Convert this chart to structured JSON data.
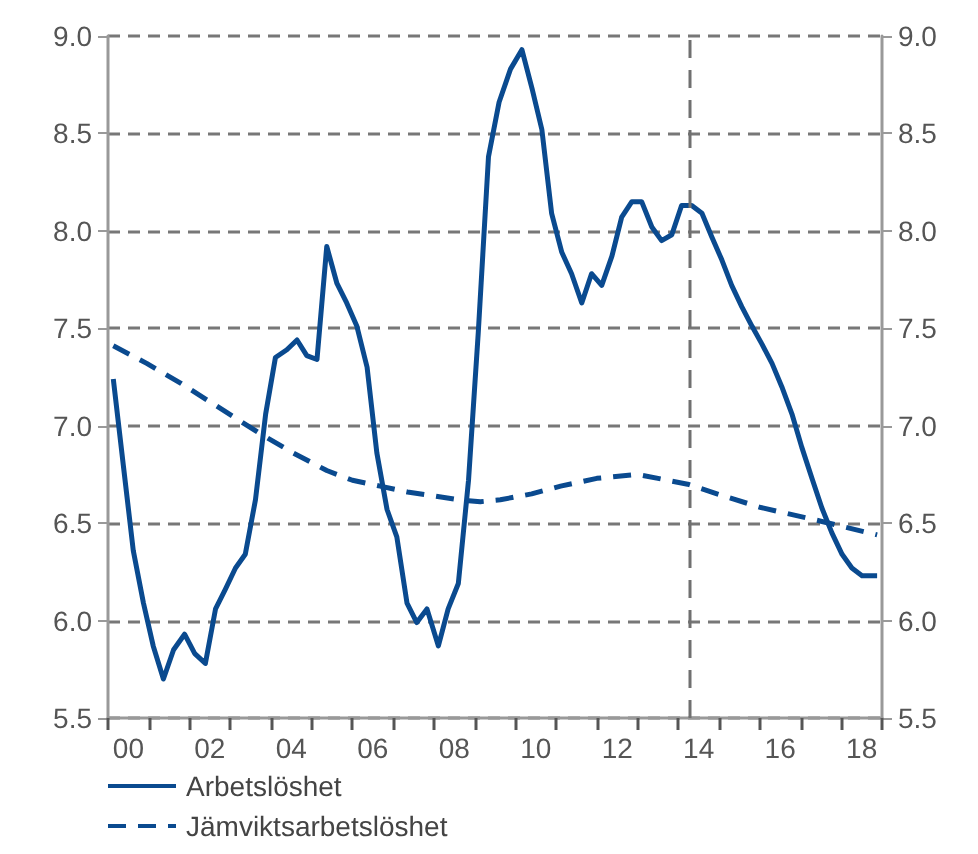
{
  "chart_data": {
    "type": "line",
    "xlim": [
      1999.5,
      2018.5
    ],
    "xticks": [
      {
        "value": 1999.5,
        "label": null
      },
      {
        "value": 2000,
        "label": "00"
      },
      {
        "value": 2000.5,
        "label": null
      },
      {
        "value": 2001.5,
        "label": null
      },
      {
        "value": 2002,
        "label": "02"
      },
      {
        "value": 2002.5,
        "label": null
      },
      {
        "value": 2003.5,
        "label": null
      },
      {
        "value": 2004,
        "label": "04"
      },
      {
        "value": 2004.5,
        "label": null
      },
      {
        "value": 2005.5,
        "label": null
      },
      {
        "value": 2006,
        "label": "06"
      },
      {
        "value": 2006.5,
        "label": null
      },
      {
        "value": 2007.5,
        "label": null
      },
      {
        "value": 2008,
        "label": "08"
      },
      {
        "value": 2008.5,
        "label": null
      },
      {
        "value": 2009.5,
        "label": null
      },
      {
        "value": 2010,
        "label": "10"
      },
      {
        "value": 2010.5,
        "label": null
      },
      {
        "value": 2011.5,
        "label": null
      },
      {
        "value": 2012,
        "label": "12"
      },
      {
        "value": 2012.5,
        "label": null
      },
      {
        "value": 2013.5,
        "label": null
      },
      {
        "value": 2014,
        "label": "14"
      },
      {
        "value": 2014.5,
        "label": null
      },
      {
        "value": 2015.5,
        "label": null
      },
      {
        "value": 2016,
        "label": "16"
      },
      {
        "value": 2016.5,
        "label": null
      },
      {
        "value": 2017.5,
        "label": null
      },
      {
        "value": 2018,
        "label": "18"
      },
      {
        "value": 2018.5,
        "label": null
      }
    ],
    "ylim": [
      5.5,
      9.0
    ],
    "yticks": [
      {
        "value": 5.5,
        "label": "5.5"
      },
      {
        "value": 6,
        "label": "6.0"
      },
      {
        "value": 6.5,
        "label": "6.5"
      },
      {
        "value": 7,
        "label": "7.0"
      },
      {
        "value": 7.5,
        "label": "7.5"
      },
      {
        "value": 8,
        "label": "8.0"
      },
      {
        "value": 8.5,
        "label": "8.5"
      },
      {
        "value": 9,
        "label": "9.0"
      }
    ],
    "y2lim": [
      5.5,
      9.0
    ],
    "y2ticks": [
      {
        "value": 5.5,
        "label": "5.5"
      },
      {
        "value": 6,
        "label": "6.0"
      },
      {
        "value": 6.5,
        "label": "6.5"
      },
      {
        "value": 7,
        "label": "7.0"
      },
      {
        "value": 7.5,
        "label": "7.5"
      },
      {
        "value": 8,
        "label": "8.0"
      },
      {
        "value": 8.5,
        "label": "8.5"
      },
      {
        "value": 9,
        "label": "9.0"
      }
    ],
    "grid": "y",
    "legend": "bottom left",
    "marker": "none",
    "ref_lines": [
      {
        "axis": "x",
        "value": 2013.75,
        "line_style": "dashed",
        "color": "#707070"
      }
    ],
    "series": [
      {
        "name": "Arbetslöshet",
        "color": "#0a4a8f",
        "line_style": "solid",
        "x": [
          1999.63,
          1999.88,
          2000.12,
          2000.37,
          2000.61,
          2000.86,
          2001.11,
          2001.38,
          2001.63,
          2001.89,
          2002.14,
          2002.38,
          2002.63,
          2002.87,
          2003.12,
          2003.37,
          2003.61,
          2003.89,
          2004.14,
          2004.38,
          2004.63,
          2004.87,
          2005.12,
          2005.36,
          2005.61,
          2005.86,
          2006.1,
          2006.35,
          2006.59,
          2006.84,
          2007.08,
          2007.33,
          2007.61,
          2007.85,
          2008.1,
          2008.35,
          2008.59,
          2008.84,
          2009.1,
          2009.38,
          2009.66,
          2009.91,
          2010.15,
          2010.39,
          2010.64,
          2010.88,
          2011.13,
          2011.37,
          2011.62,
          2011.87,
          2012.11,
          2012.36,
          2012.6,
          2012.85,
          2013.09,
          2013.34,
          2013.58,
          2013.83,
          2014.08,
          2014.32,
          2014.57,
          2014.81,
          2015.06,
          2015.31,
          2015.55,
          2015.8,
          2016.04,
          2016.29,
          2016.53,
          2016.78,
          2017.02,
          2017.27,
          2017.52,
          2017.76,
          2018.01,
          2018.38
        ],
        "values": [
          7.24,
          6.79,
          6.36,
          6.09,
          5.87,
          5.7,
          5.85,
          5.93,
          5.83,
          5.78,
          6.06,
          6.16,
          6.27,
          6.34,
          6.62,
          7.06,
          7.35,
          7.39,
          7.44,
          7.36,
          7.34,
          7.92,
          7.73,
          7.63,
          7.51,
          7.3,
          6.86,
          6.57,
          6.43,
          6.09,
          5.99,
          6.06,
          5.87,
          6.06,
          6.19,
          6.72,
          7.48,
          8.38,
          8.66,
          8.83,
          8.93,
          8.73,
          8.52,
          8.09,
          7.89,
          7.78,
          7.63,
          7.78,
          7.72,
          7.87,
          8.07,
          8.15,
          8.15,
          8.02,
          7.95,
          7.98,
          8.13,
          8.13,
          8.09,
          7.97,
          7.85,
          7.72,
          7.61,
          7.51,
          7.42,
          7.32,
          7.2,
          7.06,
          6.89,
          6.73,
          6.58,
          6.45,
          6.34,
          6.27,
          6.23,
          6.23
        ]
      },
      {
        "name": "Jämviktsarbetslöshet",
        "color": "#0a4a8f",
        "line_style": "dashed",
        "x": [
          1999.63,
          2000.45,
          2001.27,
          2002.25,
          2003.23,
          2004.05,
          2004.87,
          2005.5,
          2006.18,
          2006.85,
          2007.49,
          2008.1,
          2008.64,
          2009.13,
          2009.9,
          2010.61,
          2011.5,
          2012.5,
          2013.73,
          2014.6,
          2015.53,
          2017.0,
          2018.38
        ],
        "values": [
          7.41,
          7.32,
          7.22,
          7.09,
          6.96,
          6.86,
          6.77,
          6.72,
          6.69,
          6.66,
          6.64,
          6.62,
          6.61,
          6.62,
          6.65,
          6.69,
          6.73,
          6.75,
          6.7,
          6.64,
          6.58,
          6.51,
          6.44
        ]
      }
    ]
  }
}
